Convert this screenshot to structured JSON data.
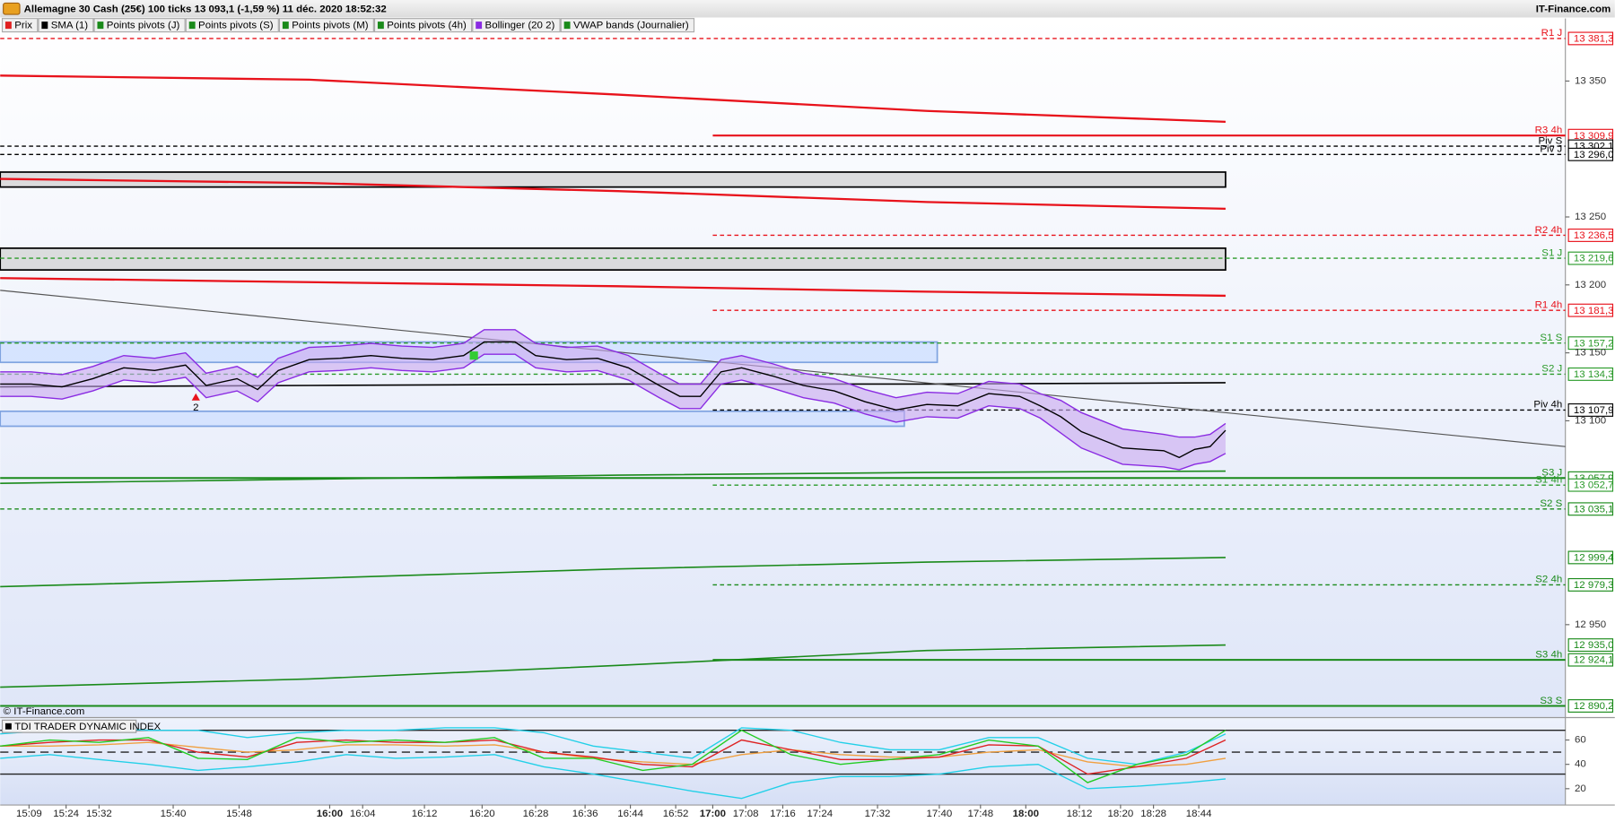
{
  "header": {
    "title": "Allemagne 30 Cash (25€) 100 ticks 13 093,1 (-1,59 %) 11 déc. 2020 18:52:32",
    "brand": "IT-Finance.com",
    "watermark": "© IT-Finance.com"
  },
  "tabs": [
    {
      "label": "Prix",
      "color": "#e02020"
    },
    {
      "label": "SMA (1)",
      "color": "#000000"
    },
    {
      "label": "Points pivots (J)",
      "color": "#1a8a1a"
    },
    {
      "label": "Points pivots (S)",
      "color": "#1a8a1a"
    },
    {
      "label": "Points pivots (M)",
      "color": "#1a8a1a"
    },
    {
      "label": "Points pivots (4h)",
      "color": "#1a8a1a"
    },
    {
      "label": "Bollinger (20 2)",
      "color": "#8a2be2"
    },
    {
      "label": "VWAP bands (Journalier)",
      "color": "#1a8a1a"
    }
  ],
  "chart_data": [
    {
      "type": "line",
      "xlim": [
        0,
        380
      ],
      "ylim": [
        12882,
        13396
      ],
      "xticks": [
        {
          "value": 7,
          "label": "15:09"
        },
        {
          "value": 16,
          "label": "15:24"
        },
        {
          "value": 24,
          "label": "15:32"
        },
        {
          "value": 42,
          "label": "15:40"
        },
        {
          "value": 58,
          "label": "15:48"
        },
        {
          "value": 80,
          "label": "16:00",
          "bold": true
        },
        {
          "value": 88,
          "label": "16:04"
        },
        {
          "value": 103,
          "label": "16:12"
        },
        {
          "value": 117,
          "label": "16:20"
        },
        {
          "value": 130,
          "label": "16:28"
        },
        {
          "value": 142,
          "label": "16:36"
        },
        {
          "value": 153,
          "label": "16:44"
        },
        {
          "value": 164,
          "label": "16:52"
        },
        {
          "value": 173,
          "label": "17:00",
          "bold": true
        },
        {
          "value": 181,
          "label": "17:08"
        },
        {
          "value": 190,
          "label": "17:16"
        },
        {
          "value": 199,
          "label": "17:24"
        },
        {
          "value": 213,
          "label": "17:32"
        },
        {
          "value": 228,
          "label": "17:40"
        },
        {
          "value": 238,
          "label": "17:48"
        },
        {
          "value": 249,
          "label": "18:00",
          "bold": true
        },
        {
          "value": 262,
          "label": "18:12"
        },
        {
          "value": 272,
          "label": "18:20"
        },
        {
          "value": 280,
          "label": "18:28"
        },
        {
          "value": 291,
          "label": "18:44"
        }
      ],
      "yticks": [
        {
          "value": 12950,
          "label": "12 950"
        },
        {
          "value": 13100,
          "label": "13 100"
        },
        {
          "value": 13150,
          "label": "13 150"
        },
        {
          "value": 13200,
          "label": "13 200"
        },
        {
          "value": 13250,
          "label": "13 250"
        },
        {
          "value": 13350,
          "label": "13 350"
        }
      ],
      "x": [
        0,
        7.5,
        15,
        22.5,
        30,
        37.5,
        45,
        50,
        57.5,
        62.5,
        67.5,
        75,
        82.5,
        90,
        97.5,
        105,
        112.5,
        117.5,
        125,
        130,
        137.5,
        145,
        152.5,
        160,
        165,
        170,
        175,
        180,
        187.5,
        195,
        202.5,
        210,
        217.5,
        225,
        232.5,
        240,
        247.5,
        252.5,
        257.5,
        262.5,
        267.5,
        272.5,
        277.5,
        282.5,
        286.25,
        290,
        293.75,
        297.5
      ],
      "series": [
        {
          "color": "#8a2be2",
          "fill": "#c9a8f0",
          "values": [
            13136,
            13136,
            13134,
            13140,
            13148,
            13146,
            13150,
            13135,
            13140,
            13132,
            13146,
            13154,
            13155,
            13157,
            13155,
            13154,
            13157,
            13167,
            13167,
            13157,
            13154,
            13155,
            13148,
            13135,
            13127,
            13127,
            13145,
            13148,
            13142,
            13135,
            13131,
            13123,
            13117,
            13121,
            13120,
            13129,
            13127,
            13120,
            13115,
            13106,
            13100,
            13094,
            13092,
            13090,
            13088,
            13088,
            13090,
            13098
          ]
        },
        {
          "color": "#8a2be2",
          "values": [
            13118,
            13118,
            13116,
            13122,
            13130,
            13128,
            13132,
            13117,
            13122,
            13114,
            13128,
            13136,
            13137,
            13139,
            13137,
            13136,
            13139,
            13149,
            13149,
            13139,
            13136,
            13137,
            13130,
            13117,
            13109,
            13109,
            13127,
            13130,
            13124,
            13117,
            13113,
            13105,
            13099,
            13103,
            13102,
            13111,
            13109,
            13102,
            13091,
            13080,
            13074,
            13068,
            13067,
            13066,
            13064,
            13068,
            13070,
            13076
          ]
        },
        {
          "color": "#000000",
          "values": [
            13127,
            13127,
            13125,
            13131,
            13139,
            13137,
            13141,
            13126,
            13131,
            13123,
            13137,
            13145,
            13146,
            13148,
            13146,
            13145,
            13148,
            13158,
            13158,
            13148,
            13145,
            13146,
            13139,
            13126,
            13118,
            13118,
            13136,
            13139,
            13133,
            13126,
            13122,
            13114,
            13108,
            13112,
            13111,
            13120,
            13118,
            13111,
            13103,
            13092,
            13086,
            13080,
            13079,
            13078,
            13073,
            13079,
            13081,
            13093
          ]
        }
      ],
      "zones": [
        {
          "x": [
            0,
            297.5
          ],
          "y": [
            13272,
            13283
          ],
          "color": "#d4d4d4",
          "border": "#000000"
        },
        {
          "x": [
            0,
            297.5
          ],
          "y": [
            13211,
            13227
          ],
          "color": "#d4d4d4",
          "border": "#000000"
        },
        {
          "x": [
            0,
            227.5
          ],
          "y": [
            13143,
            13158
          ],
          "color": "#cfe0ff",
          "border": "#7fa3e0"
        },
        {
          "x": [
            0,
            219.5
          ],
          "y": [
            13096,
            13107
          ],
          "color": "#cfe0ff",
          "border": "#7fa3e0"
        }
      ],
      "curves": [
        {
          "color": "#e8121b",
          "x": [
            0,
            75,
            150,
            225,
            297.5
          ],
          "values": [
            13354,
            13351,
            13340,
            13328,
            13320
          ]
        },
        {
          "color": "#e8121b",
          "x": [
            0,
            75,
            150,
            225,
            297.5
          ],
          "values": [
            13278,
            13275,
            13269,
            13261,
            13256
          ]
        },
        {
          "color": "#e8121b",
          "x": [
            0,
            75,
            150,
            225,
            297.5
          ],
          "values": [
            13205,
            13202,
            13199,
            13195,
            13192
          ]
        },
        {
          "color": "#000000",
          "x": [
            0,
            75,
            150,
            225,
            297.5
          ],
          "values": [
            13125,
            13126,
            13127,
            13127,
            13128
          ]
        },
        {
          "color": "#1a8a1a",
          "x": [
            0,
            75,
            150,
            225,
            297.5
          ],
          "values": [
            13054,
            13057,
            13060,
            13062,
            13063
          ]
        },
        {
          "color": "#1a8a1a",
          "x": [
            0,
            75,
            150,
            225,
            297.5
          ],
          "values": [
            12978,
            12984,
            12991,
            12996,
            12999.4
          ],
          "value_labels": [
            null,
            null,
            null,
            null,
            "12 999,4"
          ]
        },
        {
          "color": "#1a8a1a",
          "x": [
            0,
            75,
            150,
            225,
            297.5
          ],
          "values": [
            12904,
            12910,
            12920,
            12931,
            12935
          ],
          "value_labels": [
            null,
            null,
            null,
            null,
            "12 935,0"
          ]
        }
      ],
      "trendline": {
        "color": "#555555",
        "x": [
          0,
          380
        ],
        "values": [
          13196,
          13081
        ]
      },
      "levels": [
        {
          "name": "R1 J",
          "value": 13381.3,
          "label": "13 381,3",
          "color": "#e8121b",
          "dashed": true,
          "from": 0
        },
        {
          "name": "R3 4h",
          "value": 13309.9,
          "label": "13 309,9",
          "color": "#e8121b",
          "dashed": false,
          "from": 173
        },
        {
          "name": "Piv S",
          "value": 13302.1,
          "label": "13 302,1",
          "color": "#000000",
          "dashed": true,
          "from": 0
        },
        {
          "name": "Piv J",
          "value": 13296,
          "label": "13 296,0",
          "color": "#000000",
          "dashed": true,
          "from": 0
        },
        {
          "name": "R2 4h",
          "value": 13236.5,
          "label": "13 236,5",
          "color": "#e8121b",
          "dashed": true,
          "from": 173
        },
        {
          "name": "S1 J",
          "value": 13219.6,
          "label": "13 219,6",
          "color": "#2a9a2a",
          "dashed": true,
          "from": 0
        },
        {
          "name": "R1 4h",
          "value": 13181.3,
          "label": "13 181,3",
          "color": "#e8121b",
          "dashed": true,
          "from": 173
        },
        {
          "name": "S1 S",
          "value": 13157.2,
          "label": "13 157,2",
          "color": "#2a9a2a",
          "dashed": true,
          "from": 0
        },
        {
          "name": "S2 J",
          "value": 13134.3,
          "label": "13 134,3",
          "color": "#2a9a2a",
          "dashed": true,
          "from": 0
        },
        {
          "name": "Piv 4h",
          "value": 13107.9,
          "label": "13 107,9",
          "color": "#000000",
          "dashed": true,
          "from": 173
        },
        {
          "name": "S3 J",
          "value": 13057.9,
          "label": "13 057,9",
          "color": "#1a8a1a",
          "dashed": false,
          "from": 0
        },
        {
          "name": "S1 4h",
          "value": 13052.7,
          "label": "13 052,7",
          "color": "#2a9a2a",
          "dashed": true,
          "from": 173
        },
        {
          "name": "S2 S",
          "value": 13035.1,
          "label": "13 035,1",
          "color": "#1a8a1a",
          "dashed": true,
          "from": 0
        },
        {
          "name": "S2 4h",
          "value": 12979.3,
          "label": "12 979,3",
          "color": "#1a8a1a",
          "dashed": true,
          "from": 173
        },
        {
          "name": "S3 4h",
          "value": 12924.1,
          "label": "12 924,1",
          "color": "#1a8a1a",
          "dashed": false,
          "from": 173
        },
        {
          "name": "S3 S",
          "value": 12890.2,
          "label": "12 890,2",
          "color": "#1a8a1a",
          "dashed": false,
          "from": 0
        }
      ],
      "signals": [
        {
          "x": 47.5,
          "y": 13118,
          "label": 2,
          "color": "#e8121b"
        }
      ],
      "markers": [
        {
          "x": 115,
          "y": 13148,
          "color": "#33cc33"
        }
      ]
    },
    {
      "type": "line",
      "title": "TDI TRADER DYNAMIC INDEX",
      "xlim": [
        0,
        380
      ],
      "ylim": [
        7,
        78
      ],
      "yticks": [
        20,
        40,
        60
      ],
      "levels": [
        {
          "value": 68,
          "dashed": false
        },
        {
          "value": 50,
          "dashed": true
        },
        {
          "value": 32,
          "dashed": false
        }
      ],
      "x": [
        0,
        12,
        24,
        36,
        48,
        60,
        72,
        84,
        96,
        108,
        120,
        132,
        144,
        156,
        168,
        180,
        192,
        204,
        216,
        228,
        240,
        252,
        264,
        276,
        288,
        297.5
      ],
      "series": [
        {
          "color": "#22d0e8",
          "values": [
            65,
            68,
            70,
            68,
            68,
            62,
            66,
            68,
            68,
            70,
            70,
            66,
            55,
            50,
            45,
            70,
            68,
            58,
            52,
            52,
            62,
            62,
            45,
            40,
            50,
            65
          ]
        },
        {
          "color": "#22d0e8",
          "values": [
            45,
            48,
            44,
            40,
            35,
            38,
            42,
            48,
            45,
            46,
            48,
            38,
            32,
            25,
            18,
            12,
            25,
            30,
            30,
            32,
            38,
            40,
            20,
            22,
            25,
            28
          ]
        },
        {
          "color": "#f0a040",
          "values": [
            55,
            55,
            56,
            58,
            54,
            50,
            52,
            56,
            56,
            55,
            56,
            50,
            45,
            42,
            40,
            48,
            52,
            48,
            46,
            46,
            50,
            52,
            42,
            38,
            40,
            45
          ]
        },
        {
          "color": "#dd2222",
          "values": [
            55,
            58,
            60,
            60,
            50,
            46,
            58,
            60,
            58,
            58,
            60,
            50,
            46,
            40,
            38,
            60,
            52,
            44,
            44,
            46,
            56,
            55,
            32,
            38,
            45,
            60
          ]
        },
        {
          "color": "#22cc22",
          "values": [
            55,
            60,
            58,
            62,
            45,
            44,
            62,
            58,
            60,
            58,
            62,
            45,
            45,
            35,
            40,
            68,
            48,
            40,
            44,
            48,
            60,
            55,
            25,
            40,
            48,
            68
          ]
        }
      ]
    }
  ]
}
